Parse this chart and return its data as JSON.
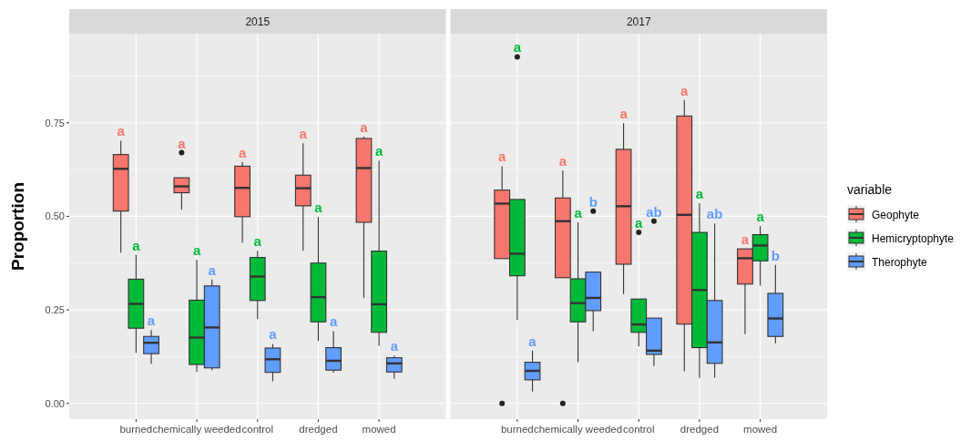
{
  "chart_data": [
    {
      "type": "box",
      "title": "2015",
      "ylabel": "Proportion",
      "categories": [
        "burned",
        "chemically weeded",
        "control",
        "dredged",
        "mowed"
      ],
      "ylim": [
        -0.042,
        0.988
      ],
      "yticks": [
        {
          "value": 0,
          "label": "0.00"
        },
        {
          "value": 0.25,
          "label": "0.25"
        },
        {
          "value": 0.5,
          "label": "0.50"
        },
        {
          "value": 0.75,
          "label": "0.75"
        }
      ],
      "grid": true,
      "legend": "right",
      "legend_title": "variable",
      "series": [
        {
          "name": "Geophyte",
          "color": "#f8766d",
          "value_labels": [
            "a",
            "a",
            "a",
            "a",
            "a"
          ],
          "boxes": [
            {
              "low": 0.403,
              "q1": 0.514,
              "median": 0.627,
              "q3": 0.665,
              "high": 0.702
            },
            {
              "low": 0.518,
              "q1": 0.563,
              "median": 0.58,
              "q3": 0.603,
              "high": 0.604,
              "outliers": [
                0.67
              ]
            },
            {
              "low": 0.429,
              "q1": 0.499,
              "median": 0.576,
              "q3": 0.634,
              "high": 0.645
            },
            {
              "low": 0.408,
              "q1": 0.528,
              "median": 0.575,
              "q3": 0.61,
              "high": 0.695
            },
            {
              "low": 0.282,
              "q1": 0.484,
              "median": 0.629,
              "q3": 0.708,
              "high": 0.713
            }
          ]
        },
        {
          "name": "Hemicryptophyte",
          "color": "#00ba38",
          "value_labels": [
            "a",
            "a",
            "a",
            "a",
            "a"
          ],
          "boxes": [
            {
              "low": 0.135,
              "q1": 0.201,
              "median": 0.266,
              "q3": 0.332,
              "high": 0.397
            },
            {
              "low": 0.084,
              "q1": 0.104,
              "median": 0.176,
              "q3": 0.276,
              "high": 0.384
            },
            {
              "low": 0.225,
              "q1": 0.275,
              "median": 0.339,
              "q3": 0.39,
              "high": 0.408
            },
            {
              "low": 0.167,
              "q1": 0.218,
              "median": 0.284,
              "q3": 0.375,
              "high": 0.498
            },
            {
              "low": 0.154,
              "q1": 0.19,
              "median": 0.265,
              "q3": 0.407,
              "high": 0.649
            }
          ]
        },
        {
          "name": "Therophyte",
          "color": "#619cff",
          "value_labels": [
            "a",
            "a",
            "a",
            "a",
            "a"
          ],
          "boxes": [
            {
              "low": 0.106,
              "q1": 0.133,
              "median": 0.162,
              "q3": 0.179,
              "high": 0.196
            },
            {
              "low": 0.089,
              "q1": 0.095,
              "median": 0.203,
              "q3": 0.314,
              "high": 0.331
            },
            {
              "low": 0.059,
              "q1": 0.083,
              "median": 0.118,
              "q3": 0.148,
              "high": 0.159
            },
            {
              "low": 0.082,
              "q1": 0.089,
              "median": 0.114,
              "q3": 0.149,
              "high": 0.193
            },
            {
              "low": 0.066,
              "q1": 0.084,
              "median": 0.107,
              "q3": 0.122,
              "high": 0.128
            }
          ]
        }
      ]
    },
    {
      "type": "box",
      "title": "2017",
      "categories": [
        "burned",
        "chemically weeded",
        "control",
        "dredged",
        "mowed"
      ],
      "ylim": [
        -0.042,
        0.988
      ],
      "yticks": [
        0,
        0.25,
        0.5,
        0.75
      ],
      "tick_labels": "x",
      "grid": true,
      "series": [
        {
          "color": "#f8766d",
          "value_labels": [
            "a",
            "a",
            "a",
            "a",
            "a"
          ],
          "boxes": [
            {
              "low": 0.387,
              "q1": 0.387,
              "median": 0.534,
              "q3": 0.57,
              "high": 0.634,
              "outliers": [
                0
              ]
            },
            {
              "low": 0.336,
              "q1": 0.336,
              "median": 0.487,
              "q3": 0.549,
              "high": 0.623,
              "outliers": [
                0
              ]
            },
            {
              "low": 0.292,
              "q1": 0.372,
              "median": 0.527,
              "q3": 0.679,
              "high": 0.749
            },
            {
              "low": 0.086,
              "q1": 0.212,
              "median": 0.504,
              "q3": 0.768,
              "high": 0.811
            },
            {
              "low": 0.185,
              "q1": 0.319,
              "median": 0.388,
              "q3": 0.413,
              "high": 0.413
            }
          ]
        },
        {
          "color": "#00ba38",
          "value_labels": [
            "a",
            "a",
            "a",
            "a",
            "a"
          ],
          "boxes": [
            {
              "low": 0.223,
              "q1": 0.341,
              "median": 0.4,
              "q3": 0.545,
              "high": 0.545,
              "outliers": [
                0.926
              ]
            },
            {
              "low": 0.11,
              "q1": 0.218,
              "median": 0.268,
              "q3": 0.333,
              "high": 0.484
            },
            {
              "low": 0.152,
              "q1": 0.19,
              "median": 0.211,
              "q3": 0.279,
              "high": 0.279,
              "outliers": [
                0.457
              ]
            },
            {
              "low": 0.068,
              "q1": 0.149,
              "median": 0.303,
              "q3": 0.457,
              "high": 0.535
            },
            {
              "low": 0.315,
              "q1": 0.381,
              "median": 0.422,
              "q3": 0.451,
              "high": 0.474
            }
          ]
        },
        {
          "color": "#619cff",
          "value_labels": [
            "a",
            "b",
            "ab",
            "ab",
            "b"
          ],
          "boxes": [
            {
              "low": 0.032,
              "q1": 0.063,
              "median": 0.087,
              "q3": 0.11,
              "high": 0.141
            },
            {
              "low": 0.193,
              "q1": 0.248,
              "median": 0.282,
              "q3": 0.351,
              "high": 0.351,
              "outliers": [
                0.514
              ]
            },
            {
              "low": 0.1,
              "q1": 0.131,
              "median": 0.141,
              "q3": 0.228,
              "high": 0.228,
              "outliers": [
                0.487
              ]
            },
            {
              "low": 0.069,
              "q1": 0.107,
              "median": 0.163,
              "q3": 0.275,
              "high": 0.481
            },
            {
              "low": 0.161,
              "q1": 0.179,
              "median": 0.227,
              "q3": 0.294,
              "high": 0.37
            }
          ]
        }
      ]
    }
  ]
}
